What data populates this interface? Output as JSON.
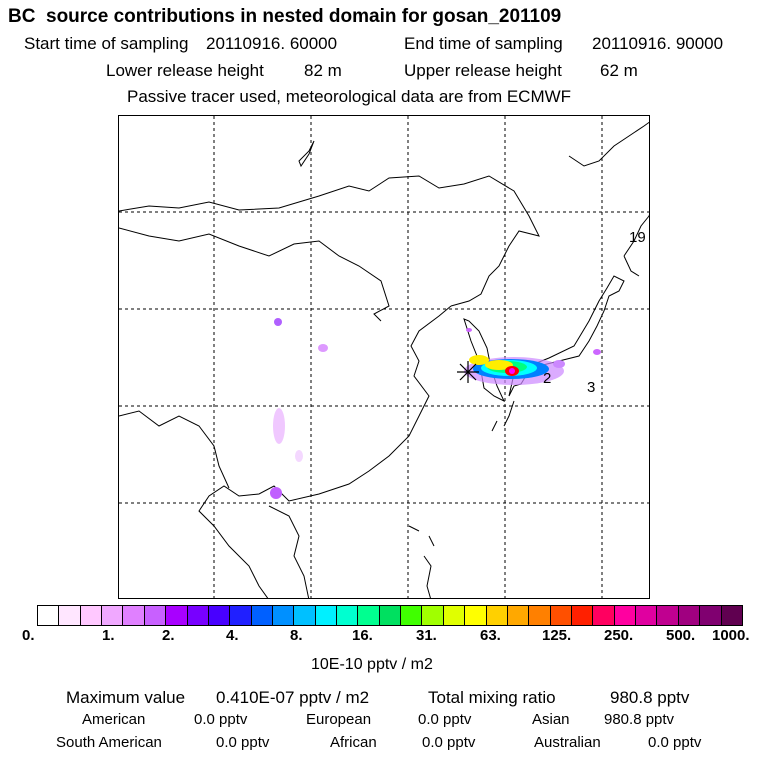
{
  "header": {
    "title": "BC  source contributions in nested domain for gosan_201109",
    "start_label": "Start time of sampling",
    "start_value": "20110916. 60000",
    "end_label": "End time of sampling",
    "end_value": "20110916. 90000",
    "lower_label": "Lower release height",
    "lower_value": "82 m",
    "upper_label": "Upper release height",
    "upper_value": "62 m",
    "note": "Passive tracer used, meteorological data are from ECMWF"
  },
  "map": {
    "labels": [
      "19",
      "2",
      "3"
    ],
    "plume_colors": [
      "#ff00ff",
      "#ff0000",
      "#ffee00",
      "#00ff80",
      "#00ffff",
      "#0080ff",
      "#cc88ff"
    ]
  },
  "scale": {
    "colors": [
      "#ffffff",
      "#ffe6ff",
      "#ffc8ff",
      "#f0a8ff",
      "#e080ff",
      "#c860ff",
      "#a800ff",
      "#7800ff",
      "#4800ff",
      "#2020ff",
      "#0060ff",
      "#0090ff",
      "#00c0ff",
      "#00f0ff",
      "#00ffd0",
      "#00ff90",
      "#00e060",
      "#40ff00",
      "#a0ff00",
      "#e0ff00",
      "#ffff00",
      "#ffd000",
      "#ffa800",
      "#ff8000",
      "#ff5000",
      "#ff2000",
      "#ff0060",
      "#ff00a0",
      "#e000a0",
      "#c00090",
      "#a00080",
      "#800070",
      "#600050"
    ],
    "ticks": [
      "0.",
      "1.",
      "2.",
      "4.",
      "8.",
      "16.",
      "31.",
      "63.",
      "125.",
      "250.",
      "500.",
      "1000."
    ],
    "unit": "10E-10 pptv / m2"
  },
  "summary": {
    "max_label": "Maximum value",
    "max_value": "0.410E-07 pptv / m2",
    "total_label": "Total mixing ratio",
    "total_value": "980.8 pptv",
    "american_label": "American",
    "american_value": "0.0 pptv",
    "european_label": "European",
    "european_value": "0.0 pptv",
    "asian_label": "Asian",
    "asian_value": "980.8 pptv",
    "southam_label": "South American",
    "southam_value": "0.0 pptv",
    "african_label": "African",
    "african_value": "0.0 pptv",
    "australian_label": "Australian",
    "australian_value": "0.0 pptv"
  }
}
